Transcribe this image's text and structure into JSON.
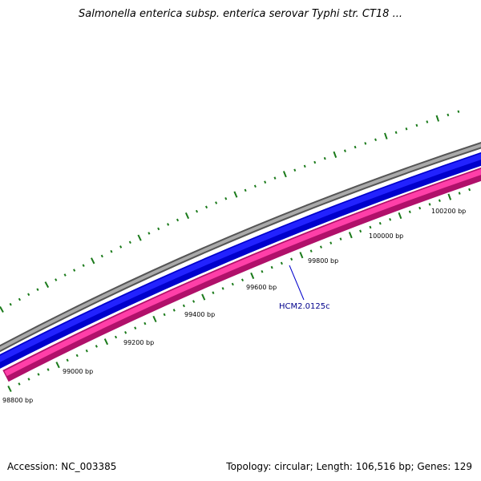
{
  "title": "Salmonella enterica subsp. enterica serovar Typhi str. CT18 ...",
  "footer": {
    "accession": "Accession: NC_003385",
    "summary": "Topology: circular; Length: 106,516 bp; Genes: 129"
  },
  "colors": {
    "outer_strand": "#888888",
    "forward_feature": "#0000ff",
    "reverse_feature": "#e8198a",
    "tick": "#1a7a1a",
    "gene_label": "#00008b"
  },
  "ruler": {
    "labels": [
      "98800 bp",
      "99000 bp",
      "99200 bp",
      "99400 bp",
      "99600 bp",
      "99800 bp",
      "100000 bp",
      "100200 bp"
    ]
  },
  "gene": {
    "label": "HCM2.0125c"
  }
}
